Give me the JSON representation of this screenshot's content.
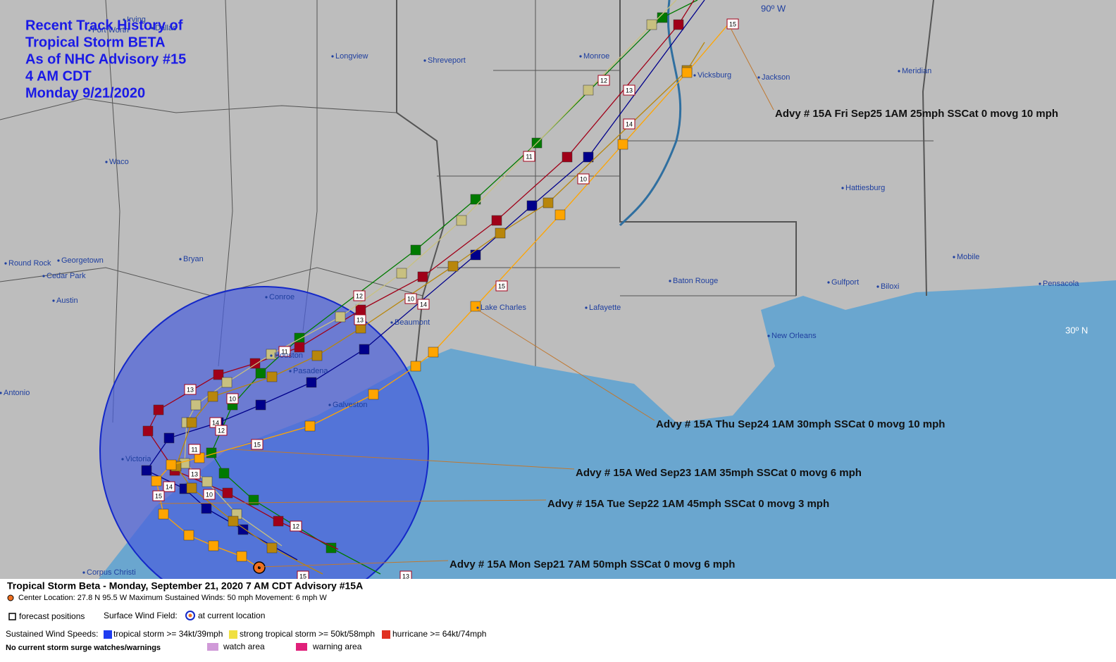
{
  "title": [
    "Recent Track History of",
    "Tropical Storm BETA",
    "As of NHC Advisory #15",
    "4 AM CDT",
    "Monday 9/21/2020"
  ],
  "grid_labels": [
    "90º W",
    "30º N"
  ],
  "cities": [
    "Irving",
    "Fort Worth",
    "Dallas",
    "Longview",
    "Shreveport",
    "Monroe",
    "Vicksburg",
    "Jackson",
    "Meridian",
    "Waco",
    "Round Rock",
    "Georgetown",
    "Cedar Park",
    "Austin",
    "Bryan",
    "Conroe",
    "Beaumont",
    "Lake Charles",
    "Lafayette",
    "Baton Rouge",
    "Hattiesburg",
    "Mobile",
    "Gulfport",
    "Biloxi",
    "Pensacola",
    "New Orleans",
    "Houston",
    "Pasadena",
    "Galveston",
    "Victoria",
    "Corpus Christi",
    "Antonio"
  ],
  "advisories": [
    "Advy # 15A Fri Sep25 1AM  25mph SSCat 0 movg 10 mph",
    "Advy # 15A Thu Sep24 1AM  30mph SSCat 0 movg 10 mph",
    "Advy # 15A Wed Sep23 1AM  35mph SSCat 0 movg 6 mph",
    "Advy # 15A Tue Sep22 1AM  45mph SSCat 0 movg 3 mph",
    "Advy # 15A Mon Sep21 7AM  50mph SSCat 0 movg 6 mph"
  ],
  "track_labels": [
    "12",
    "13",
    "14",
    "11",
    "10",
    "15",
    "12",
    "10",
    "14",
    "13",
    "11",
    "13",
    "10",
    "14",
    "12",
    "15",
    "11",
    "13",
    "14",
    "10",
    "15",
    "12",
    "15",
    "15",
    "13"
  ],
  "legend": {
    "header": "Tropical Storm Beta  -  Monday, September 21, 2020  7 AM CDT   Advisory #15A",
    "center": "Center Location: 27.8 N  95.5 W   Maximum Sustained Winds: 50 mph   Movement: 6 mph W",
    "forecast": "forecast positions",
    "wind_field": "Surface Wind Field:",
    "current": "at current location",
    "speeds": "Sustained Wind Speeds:",
    "ts": "tropical storm >= 34kt/39mph",
    "sts": "strong tropical storm >= 50kt/58mph",
    "hu": "hurricane >= 64kt/74mph",
    "surge": "No current storm surge watches/warnings",
    "watch": "watch area",
    "warning": "warning area"
  }
}
